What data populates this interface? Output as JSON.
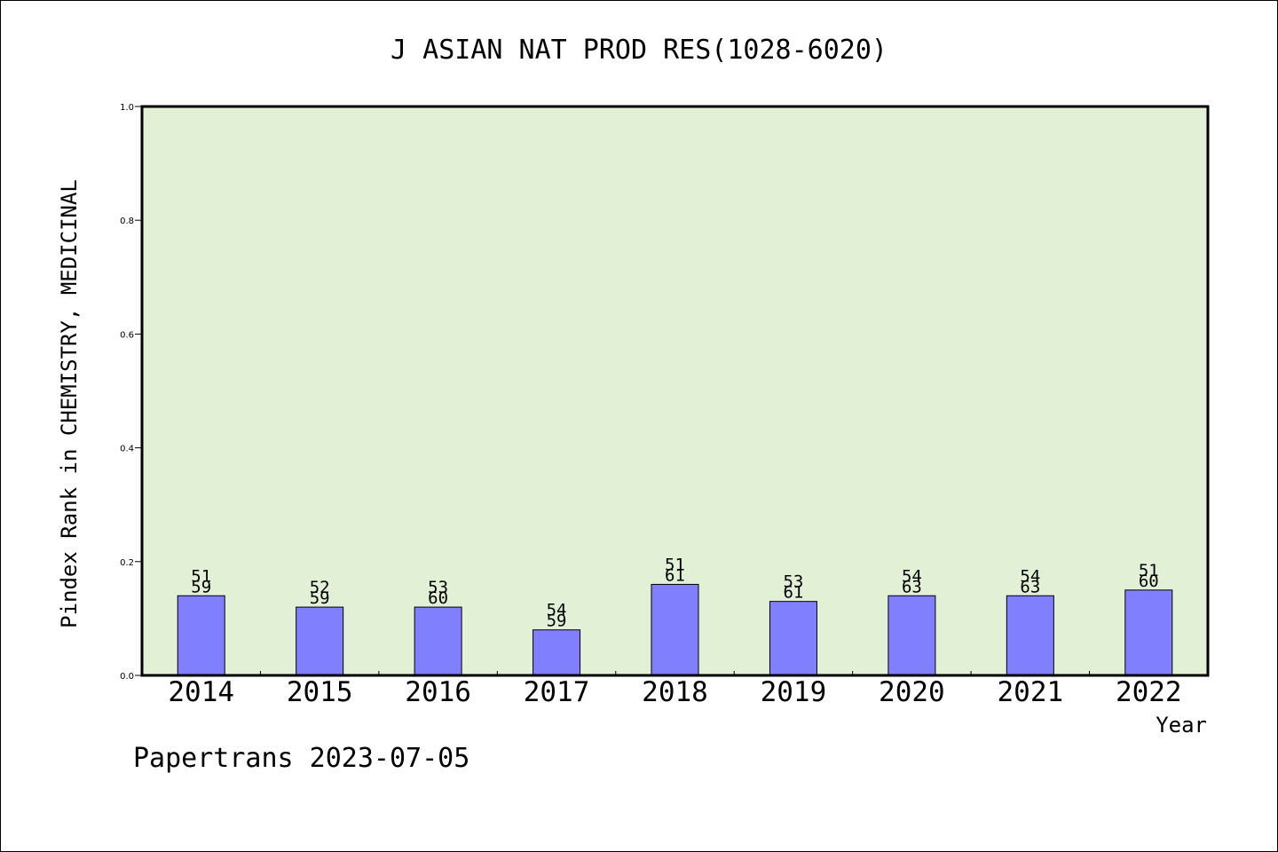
{
  "chart_data": {
    "type": "bar",
    "title": "J ASIAN NAT PROD RES(1028-6020)",
    "xlabel": "Year",
    "ylabel": "Pindex Rank in CHEMISTRY, MEDICINAL",
    "ylim": [
      0,
      1.0
    ],
    "yticks": [
      "0.0",
      "0.2",
      "0.4",
      "0.6",
      "0.8",
      "1.0"
    ],
    "grid": false,
    "categories": [
      "2014",
      "2015",
      "2016",
      "2017",
      "2018",
      "2019",
      "2020",
      "2021",
      "2022"
    ],
    "values": [
      0.14,
      0.12,
      0.12,
      0.08,
      0.16,
      0.13,
      0.14,
      0.14,
      0.15
    ],
    "labels_top": [
      "51",
      "52",
      "53",
      "54",
      "51",
      "53",
      "54",
      "54",
      "51"
    ],
    "labels_bottom": [
      "59",
      "59",
      "60",
      "59",
      "61",
      "61",
      "63",
      "63",
      "60"
    ],
    "bar_color": "#8080ff",
    "plot_background": "#e2f0d6"
  },
  "footer": {
    "source": "Papertrans 2023-07-05"
  }
}
